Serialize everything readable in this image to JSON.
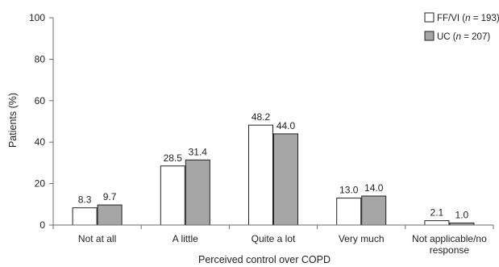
{
  "chart_data": {
    "type": "bar",
    "title": "",
    "xlabel": "Perceived control  over COPD",
    "ylabel": "Patients (%)",
    "ylim": [
      0,
      100
    ],
    "yticks": [
      0,
      20,
      40,
      60,
      80,
      100
    ],
    "grid": false,
    "legend_position": "top-right",
    "categories": [
      [
        "Not at all"
      ],
      [
        "A little"
      ],
      [
        "Quite a lot"
      ],
      [
        "Very much"
      ],
      [
        "Not applicable/no",
        "response"
      ]
    ],
    "series": [
      {
        "name": "FF/VI (n = 193)",
        "name_parts": [
          "FF/VI (",
          "n",
          " = 193)"
        ],
        "color": "#ffffff",
        "values": [
          8.3,
          28.5,
          48.2,
          13.0,
          2.1
        ],
        "labels": [
          "8.3",
          "28.5",
          "48.2",
          "13.0",
          "2.1"
        ]
      },
      {
        "name": "UC (n = 207)",
        "name_parts": [
          "UC (",
          "n",
          " = 207)"
        ],
        "color": "#a6a6a6",
        "values": [
          9.7,
          31.4,
          44.0,
          14.0,
          1.0
        ],
        "labels": [
          "9.7",
          "31.4",
          "44.0",
          "14.0",
          "1.0"
        ]
      }
    ]
  }
}
